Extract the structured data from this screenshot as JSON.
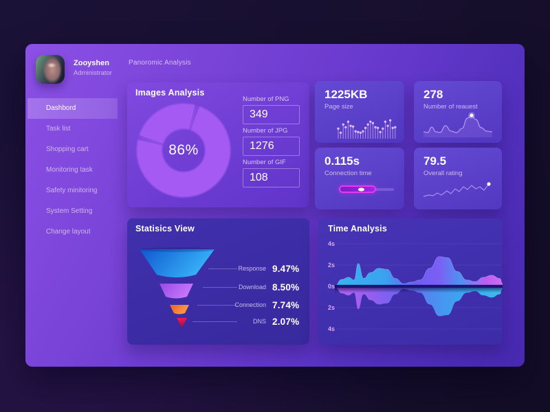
{
  "user": {
    "name": "Zooyshen",
    "role": "Administrator"
  },
  "header": {
    "title": "Panoromic Analysis"
  },
  "sidebar": {
    "active_index": 0,
    "items": [
      "Dashbord",
      "Task list",
      "Shopping cart",
      "Monitoring task",
      "Safety minitoring",
      "System Setting",
      "Change layout"
    ]
  },
  "images_analysis": {
    "title": "Images Analysis",
    "donut": {
      "percent": "86%"
    },
    "fields": [
      {
        "label": "Number of PNG",
        "value": "349"
      },
      {
        "label": "Number of JPG",
        "value": "1276"
      },
      {
        "label": "Number of GIF",
        "value": "108"
      }
    ]
  },
  "kpi_cards": [
    {
      "value": "1225KB",
      "label": "Page size"
    },
    {
      "value": "278",
      "label": "Number of reauest"
    },
    {
      "value": "0.115s",
      "label": "Connection time"
    },
    {
      "value": "79.5",
      "label": "Overall rating"
    }
  ],
  "statistics_view": {
    "title": "Statisics View",
    "rows": [
      {
        "label": "Response",
        "value": "9.47%"
      },
      {
        "label": "Download",
        "value": "8.50%"
      },
      {
        "label": "Connection",
        "value": "7.74%"
      },
      {
        "label": "DNS",
        "value": "2.07%"
      }
    ]
  },
  "time_analysis": {
    "title": "Time Analysis",
    "y_ticks": [
      "4s",
      "2s",
      "0s",
      "2s",
      "4s"
    ]
  },
  "colors": {
    "accent_purple": "#a55bf3",
    "magenta": "#e23bf0",
    "funnel_blue": "#2a9bf2",
    "funnel_purple": "#b express",
    "panel_top": "#8c50e6",
    "panel_bottom": "#4729b0"
  },
  "chart_data": [
    {
      "id": "images_donut",
      "type": "donut",
      "title": "Images Analysis",
      "percent": 86,
      "center_label": "86%",
      "color": "#a55bf3",
      "gaps": [
        [
          14,
          20
        ],
        [
          283,
          289
        ]
      ]
    },
    {
      "id": "pagesize",
      "type": "lollipop",
      "title": "Page size",
      "value_label": "1225KB",
      "values": [
        13,
        7,
        19,
        15,
        23,
        17,
        16,
        9,
        8,
        7,
        9,
        14,
        19,
        23,
        21,
        15,
        14,
        8,
        13,
        23,
        17,
        25,
        14,
        15
      ]
    },
    {
      "id": "requests",
      "type": "line",
      "title": "Number of reauest",
      "value_label": "278",
      "points": [
        [
          2,
          34
        ],
        [
          8,
          35
        ],
        [
          14,
          27
        ],
        [
          20,
          34
        ],
        [
          26,
          35
        ],
        [
          34,
          25
        ],
        [
          42,
          33
        ],
        [
          50,
          35
        ],
        [
          58,
          29
        ],
        [
          66,
          14
        ],
        [
          72,
          10
        ],
        [
          78,
          16
        ],
        [
          86,
          28
        ],
        [
          94,
          33
        ],
        [
          102,
          34
        ]
      ],
      "dot": [
        72,
        10
      ]
    },
    {
      "id": "connection",
      "type": "progress",
      "title": "Connection time",
      "value_label": "0.115s",
      "fraction": 0.52
    },
    {
      "id": "rating",
      "type": "line",
      "title": "Overall rating",
      "value_label": "79.5",
      "points": [
        [
          2,
          26
        ],
        [
          10,
          24
        ],
        [
          16,
          25
        ],
        [
          22,
          21
        ],
        [
          28,
          24
        ],
        [
          36,
          18
        ],
        [
          42,
          22
        ],
        [
          48,
          15
        ],
        [
          54,
          19
        ],
        [
          60,
          12
        ],
        [
          66,
          16
        ],
        [
          72,
          10
        ],
        [
          78,
          15
        ],
        [
          84,
          12
        ],
        [
          90,
          17
        ],
        [
          97,
          8
        ]
      ],
      "dot": [
        97,
        8
      ]
    },
    {
      "id": "funnel",
      "type": "funnel",
      "title": "Statisics View",
      "stages": [
        {
          "label": "Response",
          "value_pct": 9.47
        },
        {
          "label": "Download",
          "value_pct": 8.5
        },
        {
          "label": "Connection",
          "value_pct": 7.74
        },
        {
          "label": "DNS",
          "value_pct": 2.07
        }
      ]
    },
    {
      "id": "time_wave",
      "type": "area-mirrored",
      "title": "Time Analysis",
      "y_unit": "s",
      "y_ticks": [
        "4s",
        "2s",
        "0s",
        "2s",
        "4s"
      ],
      "y_range": [
        -4,
        4
      ],
      "points": [
        [
          0,
          0.05
        ],
        [
          10,
          0.65
        ],
        [
          20,
          0.85
        ],
        [
          28,
          0.6
        ],
        [
          34,
          2.15
        ],
        [
          42,
          0.75
        ],
        [
          52,
          1.3
        ],
        [
          64,
          1.7
        ],
        [
          76,
          1.6
        ],
        [
          88,
          0.75
        ],
        [
          100,
          0.25
        ],
        [
          112,
          0.4
        ],
        [
          124,
          0.6
        ],
        [
          138,
          1.7
        ],
        [
          152,
          2.8
        ],
        [
          164,
          2.7
        ],
        [
          178,
          1.4
        ],
        [
          192,
          0.6
        ],
        [
          204,
          0.45
        ],
        [
          216,
          0.85
        ],
        [
          228,
          1.05
        ],
        [
          240,
          0.75
        ],
        [
          244,
          0.25
        ]
      ]
    }
  ]
}
